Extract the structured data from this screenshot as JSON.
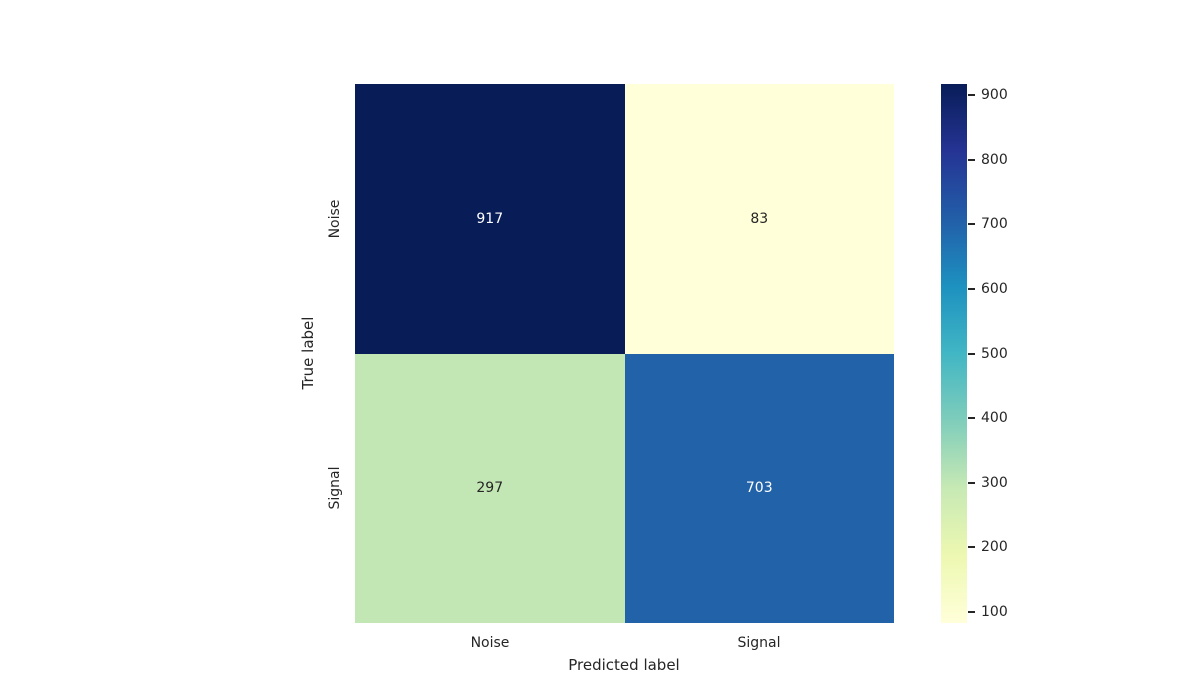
{
  "chart_data": {
    "type": "heatmap",
    "title": "",
    "xlabel": "Predicted label",
    "ylabel": "True label",
    "x_categories": [
      "Noise",
      "Signal"
    ],
    "y_categories": [
      "Noise",
      "Signal"
    ],
    "values": [
      [
        917,
        83
      ],
      [
        297,
        703
      ]
    ],
    "vmin": 83,
    "vmax": 917,
    "colormap": "YlGnBu",
    "colormap_stops": [
      "#ffffd9",
      "#edf8b1",
      "#c7e9b4",
      "#7fcdbb",
      "#41b6c4",
      "#1d91c0",
      "#225ea8",
      "#253494",
      "#081d58"
    ],
    "cell_colors": [
      [
        "#081d58",
        "#ffffd9"
      ],
      [
        "#c3e7b4",
        "#2262a9"
      ]
    ],
    "cell_text_colors": [
      [
        "#ffffff",
        "#262626"
      ],
      [
        "#262626",
        "#ffffff"
      ]
    ],
    "colorbar_ticks": [
      100,
      200,
      300,
      400,
      500,
      600,
      700,
      800,
      900
    ],
    "legend_position": "right-colorbar",
    "grid": false
  }
}
